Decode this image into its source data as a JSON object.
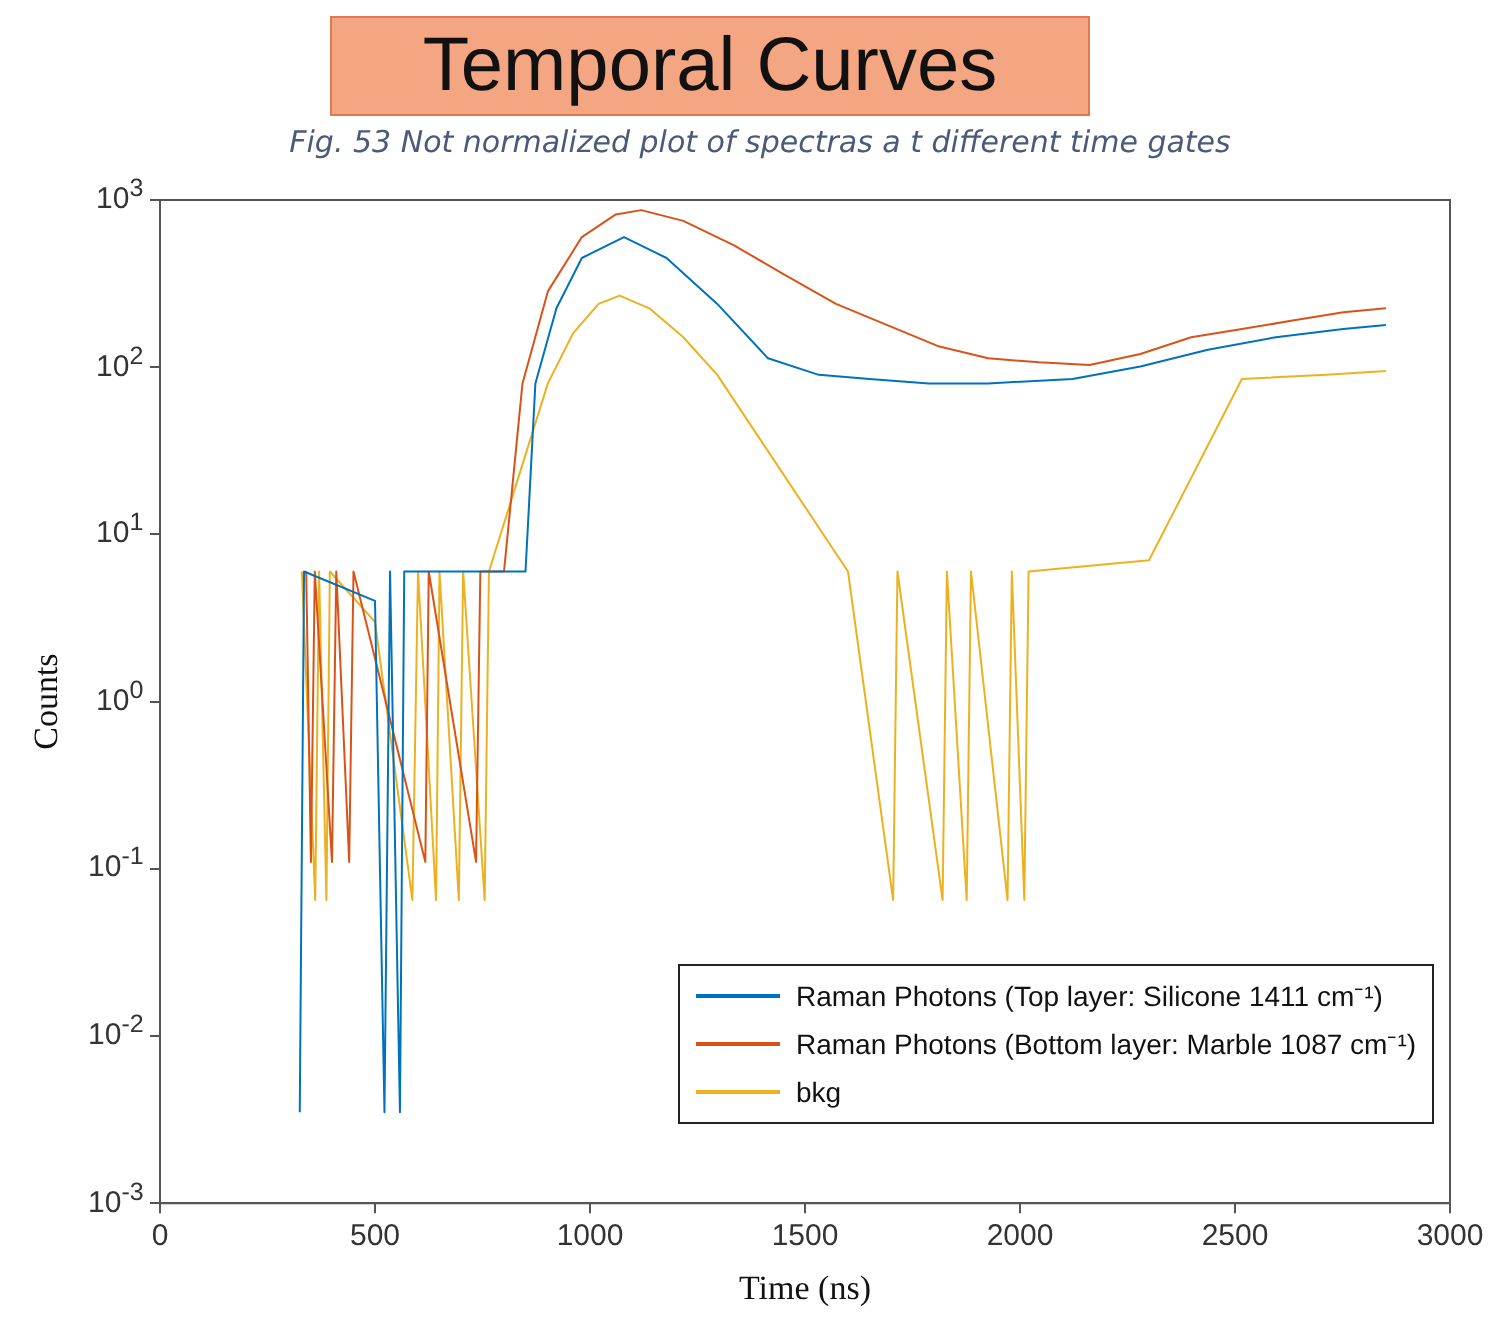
{
  "chart_data": {
    "type": "line",
    "title": "Temporal Curves",
    "annotations": [
      "Fig. 53 Not normalized plot of spectras a t different time gates"
    ],
    "xlabel": "Time (ns)",
    "ylabel": "Counts",
    "xlim": [
      0,
      3000
    ],
    "xticks": [
      0,
      500,
      1000,
      1500,
      2000,
      2500,
      3000
    ],
    "ylim": [
      0.001,
      1000
    ],
    "yticks": [
      {
        "value": 0.001,
        "label": "10$^{-3}$"
      },
      {
        "value": 0.01,
        "label": "10$^{-2}$"
      },
      {
        "value": 0.1,
        "label": "10$^{-1}$"
      },
      {
        "value": 1,
        "label": "10$^{0}$"
      },
      {
        "value": 10,
        "label": "10$^{1}$"
      },
      {
        "value": 100,
        "label": "10$^{2}$"
      },
      {
        "value": 1000,
        "label": "10$^{3}$"
      }
    ],
    "log": "y",
    "legend": "bottom right",
    "marker": "none",
    "line_style": "solid",
    "series": [
      {
        "name": "Raman Photons (Top layer: Silicone 1411 cm⁻¹)",
        "color": "#0072bd",
        "x": [
          325,
          335,
          500,
          522,
          535,
          558,
          568,
          800,
          850,
          873,
          922,
          981,
          1079,
          1178,
          1296,
          1414,
          1532,
          1650,
          1788,
          1926,
          2122,
          2280,
          2437,
          2595,
          2752,
          2851
        ],
        "values": [
          0.0035,
          6,
          4,
          0.0035,
          6,
          0.0035,
          6,
          6,
          6,
          80,
          225,
          450,
          600,
          450,
          239,
          113,
          90,
          85,
          80,
          80,
          85,
          101,
          127,
          151,
          169,
          179
        ]
      },
      {
        "name": "Raman Photons (Bottom layer: Marble 1087 cm⁻¹)",
        "color": "#d95319",
        "x": [
          340,
          351,
          360,
          400,
          410,
          440,
          450,
          617,
          625,
          735,
          745,
          800,
          843,
          902,
          981,
          1060,
          1119,
          1217,
          1335,
          1453,
          1572,
          1690,
          1808,
          1926,
          2044,
          2162,
          2280,
          2398,
          2516,
          2634,
          2752,
          2851
        ],
        "values": [
          6,
          0.11,
          6,
          0.11,
          6,
          0.11,
          6,
          0.11,
          6,
          0.11,
          6,
          6,
          80,
          284,
          600,
          820,
          870,
          750,
          535,
          357,
          239,
          179,
          134,
          113,
          107,
          103,
          120,
          151,
          169,
          190,
          213,
          225
        ]
      },
      {
        "name": "bkg",
        "color": "#edb120",
        "x": [
          330,
          361,
          370,
          387,
          395,
          500,
          587,
          600,
          642,
          650,
          695,
          705,
          755,
          765,
          902,
          961,
          1020,
          1069,
          1138,
          1217,
          1296,
          1600,
          1705,
          1715,
          1820,
          1830,
          1876,
          1886,
          1971,
          1981,
          2010,
          2020,
          2300,
          2516,
          2713,
          2851
        ],
        "values": [
          6,
          0.065,
          6,
          0.065,
          6,
          3,
          0.065,
          6,
          0.065,
          6,
          0.065,
          6,
          0.065,
          6,
          80,
          160,
          239,
          268,
          225,
          151,
          90,
          6,
          0.065,
          6,
          0.065,
          6,
          0.065,
          6,
          0.065,
          6,
          0.065,
          6,
          7,
          85,
          90,
          95
        ]
      }
    ]
  }
}
